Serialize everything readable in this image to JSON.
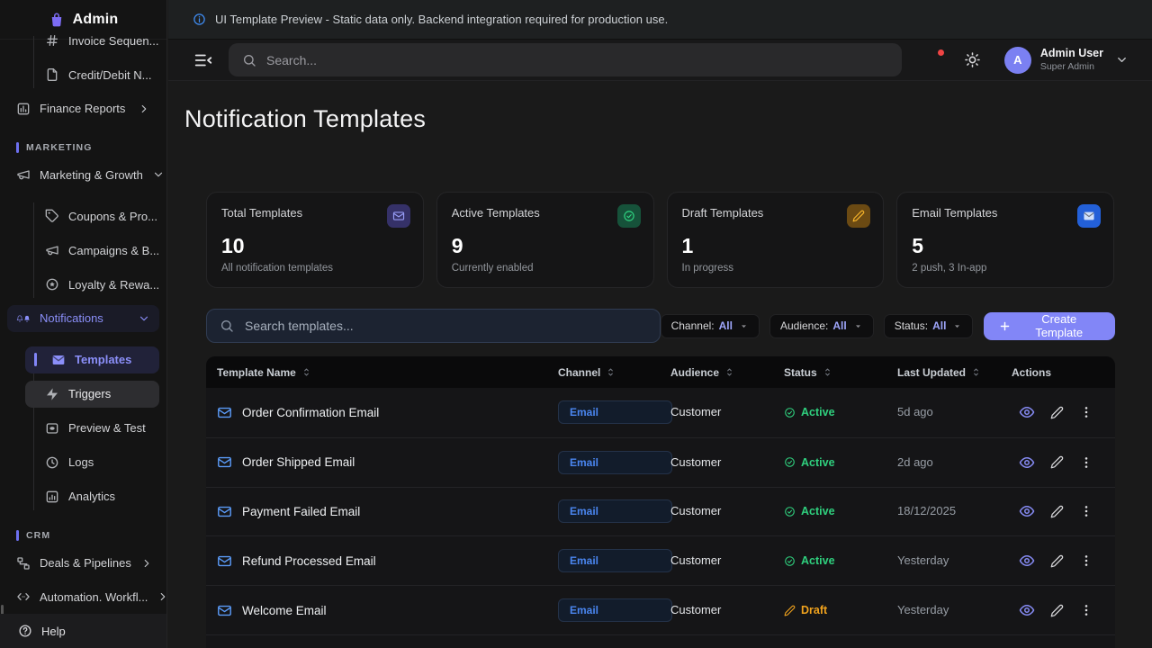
{
  "banner": {
    "text": "UI Template Preview - Static data only. Backend integration required for production use."
  },
  "sidebar": {
    "logo_title": "Admin",
    "items": [
      {
        "type": "subitem",
        "icon": "hash-icon",
        "label": "Invoice Sequen...",
        "clipped": true
      },
      {
        "type": "subitem",
        "icon": "file-icon",
        "label": "Credit/Debit N..."
      },
      {
        "type": "item",
        "icon": "bar-chart-icon",
        "label": "Finance Reports",
        "chevron": "right"
      },
      {
        "type": "section",
        "label": "MARKETING"
      },
      {
        "type": "item",
        "icon": "megaphone-icon",
        "label": "Marketing & Growth",
        "chevron": "down"
      },
      {
        "type": "subitem",
        "icon": "tag-icon",
        "label": "Coupons & Pro..."
      },
      {
        "type": "subitem",
        "icon": "megaphone-icon",
        "label": "Campaigns & B..."
      },
      {
        "type": "subitem",
        "icon": "award-icon",
        "label": "Loyalty & Rewa..."
      },
      {
        "type": "item",
        "icon": "bell-icon",
        "label": "Notifications",
        "chevron": "down",
        "state": "parent-open"
      },
      {
        "type": "subitem",
        "icon": "mail-filled-icon",
        "label": "Templates",
        "state": "active"
      },
      {
        "type": "subitem",
        "icon": "zap-icon",
        "label": "Triggers",
        "state": "hovered"
      },
      {
        "type": "subitem",
        "icon": "preview-icon",
        "label": "Preview & Test"
      },
      {
        "type": "subitem",
        "icon": "history-icon",
        "label": "Logs"
      },
      {
        "type": "subitem",
        "icon": "analytics-icon",
        "label": "Analytics"
      },
      {
        "type": "section",
        "label": "CRM"
      },
      {
        "type": "item",
        "icon": "pipeline-icon",
        "label": "Deals & Pipelines",
        "chevron": "right"
      },
      {
        "type": "item",
        "icon": "code-icon",
        "label": "Automation. Workfl...",
        "chevron": "right"
      }
    ],
    "footer": {
      "icon": "help-icon",
      "label": "Help"
    }
  },
  "topbar": {
    "search_placeholder": "Search...",
    "user": {
      "initial": "A",
      "name": "Admin User",
      "role": "Super Admin"
    }
  },
  "page": {
    "title": "Notification Templates"
  },
  "stats": [
    {
      "label": "Total Templates",
      "value": "10",
      "sub": "All notification templates",
      "icon": "mail-icon",
      "accent": "purple"
    },
    {
      "label": "Active Templates",
      "value": "9",
      "sub": "Currently enabled",
      "icon": "check-circle-icon",
      "accent": "green"
    },
    {
      "label": "Draft Templates",
      "value": "1",
      "sub": "In progress",
      "icon": "pencil-icon",
      "accent": "amber"
    },
    {
      "label": "Email Templates",
      "value": "5",
      "sub": "2 push, 3 In-app",
      "icon": "mail-filled-icon",
      "accent": "blue"
    }
  ],
  "toolbar": {
    "search_placeholder": "Search templates...",
    "filters": [
      {
        "label": "Channel:",
        "value": "All"
      },
      {
        "label": "Audience:",
        "value": "All"
      },
      {
        "label": "Status:",
        "value": "All"
      }
    ],
    "create_label": "Create Template"
  },
  "table": {
    "columns": [
      {
        "label": "Template Name",
        "sortable": true
      },
      {
        "label": "Channel",
        "sortable": true
      },
      {
        "label": "Audience",
        "sortable": true
      },
      {
        "label": "Status",
        "sortable": true
      },
      {
        "label": "Last Updated",
        "sortable": true
      },
      {
        "label": "Actions",
        "sortable": false
      }
    ],
    "rows": [
      {
        "name": "Order Confirmation Email",
        "channel": "Email",
        "audience": "Customer",
        "status": "Active",
        "status_type": "active",
        "updated": "5d ago"
      },
      {
        "name": "Order Shipped Email",
        "channel": "Email",
        "audience": "Customer",
        "status": "Active",
        "status_type": "active",
        "updated": "2d ago"
      },
      {
        "name": "Payment Failed Email",
        "channel": "Email",
        "audience": "Customer",
        "status": "Active",
        "status_type": "active",
        "updated": "18/12/2025"
      },
      {
        "name": "Refund Processed Email",
        "channel": "Email",
        "audience": "Customer",
        "status": "Active",
        "status_type": "active",
        "updated": "Yesterday"
      },
      {
        "name": "Welcome Email",
        "channel": "Email",
        "audience": "Customer",
        "status": "Draft",
        "status_type": "draft",
        "updated": "Yesterday"
      }
    ]
  },
  "colors": {
    "accent_purple": "#8286f7",
    "channel_blue": "#4a86f0",
    "status_green": "#2fd07e",
    "status_amber": "#f0a21d",
    "notification_red": "#ef4444"
  }
}
